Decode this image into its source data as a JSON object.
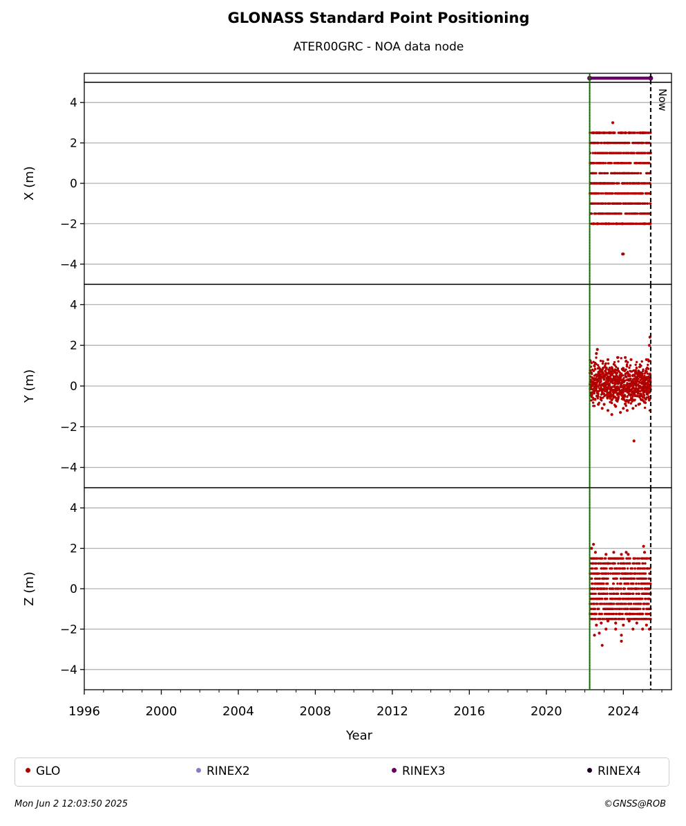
{
  "title": "GLONASS Standard Point Positioning",
  "subtitle": "ATER00GRC - NOA data node",
  "legend": [
    {
      "label": "GLO",
      "color": "#b00000"
    },
    {
      "label": "RINEX2",
      "color": "#8080c0"
    },
    {
      "label": "RINEX3",
      "color": "#660066"
    },
    {
      "label": "RINEX4",
      "color": "#1a0020"
    }
  ],
  "footer": {
    "timestamp": "Mon Jun  2 12:03:50 2025",
    "copyright": "©GNSS@ROB"
  },
  "chart_data": {
    "type": "scatter",
    "xlabel": "Year",
    "xlim": [
      1996,
      2026.5
    ],
    "xticks": [
      1996,
      2000,
      2004,
      2008,
      2012,
      2016,
      2020,
      2024
    ],
    "ylim": [
      -5,
      5
    ],
    "yticks": [
      4,
      2,
      0,
      -2,
      -4
    ],
    "ytick_labels": [
      "4",
      "2",
      "0",
      "−2",
      "−4"
    ],
    "grid": true,
    "data_start": 2022.25,
    "now": 2025.42,
    "now_label": "Now",
    "rinex3_span": [
      2022.25,
      2025.42
    ],
    "panels": [
      {
        "ylabel": "X (m)",
        "series_name": "GLO",
        "levels": [
          -2,
          -1.5,
          -1,
          -0.5,
          0,
          0.5,
          1,
          1.5,
          2,
          2.5
        ],
        "points": [
          [
            2022.3,
            1.0
          ],
          [
            2022.45,
            2.5
          ],
          [
            2022.6,
            2.5
          ],
          [
            2022.75,
            2.5
          ],
          [
            2023.0,
            2.5
          ],
          [
            2023.3,
            2.5
          ],
          [
            2023.5,
            2.5
          ],
          [
            2023.9,
            2.5
          ],
          [
            2024.1,
            2.5
          ],
          [
            2024.3,
            2.5
          ],
          [
            2024.9,
            2.5
          ],
          [
            2025.0,
            2.5
          ],
          [
            2023.45,
            3.0
          ],
          [
            2022.45,
            -2.0
          ],
          [
            2022.65,
            -2.0
          ],
          [
            2023.1,
            -2.0
          ],
          [
            2023.25,
            -2.0
          ],
          [
            2023.65,
            -2.0
          ],
          [
            2023.95,
            -2.0
          ],
          [
            2025.1,
            -2.0
          ],
          [
            2025.4,
            -2.0
          ],
          [
            2023.96,
            -3.5
          ],
          [
            2024.0,
            -3.5
          ]
        ]
      },
      {
        "ylabel": "Y (m)",
        "series_name": "GLO",
        "points": [
          [
            2022.6,
            1.6
          ],
          [
            2022.65,
            1.8
          ],
          [
            2023.2,
            1.3
          ],
          [
            2023.7,
            1.4
          ],
          [
            2024.1,
            1.4
          ],
          [
            2024.4,
            1.3
          ],
          [
            2025.2,
            1.3
          ],
          [
            2025.35,
            2.0
          ],
          [
            2025.38,
            2.4
          ],
          [
            2022.7,
            -0.9
          ],
          [
            2022.9,
            -1.1
          ],
          [
            2023.0,
            -0.9
          ],
          [
            2023.2,
            -1.2
          ],
          [
            2023.4,
            -1.4
          ],
          [
            2023.6,
            -1.0
          ],
          [
            2023.85,
            -1.3
          ],
          [
            2024.0,
            -1.1
          ],
          [
            2024.2,
            -1.2
          ],
          [
            2024.5,
            -1.1
          ],
          [
            2024.8,
            -0.9
          ],
          [
            2025.1,
            -0.8
          ],
          [
            2024.55,
            -2.7
          ]
        ]
      },
      {
        "ylabel": "Z (m)",
        "series_name": "GLO",
        "levels": [
          -1.5,
          -1.25,
          -1,
          -0.75,
          -0.5,
          -0.25,
          0,
          0.25,
          0.5,
          0.75,
          1,
          1.25,
          1.5
        ],
        "points": [
          [
            2022.35,
            2.0
          ],
          [
            2022.45,
            2.2
          ],
          [
            2022.55,
            1.8
          ],
          [
            2023.1,
            1.7
          ],
          [
            2023.5,
            1.8
          ],
          [
            2023.9,
            1.7
          ],
          [
            2024.15,
            1.8
          ],
          [
            2024.25,
            1.7
          ],
          [
            2025.05,
            2.1
          ],
          [
            2025.1,
            1.8
          ],
          [
            2022.6,
            -1.8
          ],
          [
            2022.85,
            -1.7
          ],
          [
            2023.2,
            -1.6
          ],
          [
            2023.6,
            -1.7
          ],
          [
            2024.0,
            -1.8
          ],
          [
            2024.3,
            -1.6
          ],
          [
            2024.7,
            -1.7
          ],
          [
            2025.2,
            -1.8
          ],
          [
            2022.5,
            -2.3
          ],
          [
            2022.75,
            -2.2
          ],
          [
            2023.1,
            -2.0
          ],
          [
            2023.6,
            -2.0
          ],
          [
            2023.9,
            -2.3
          ],
          [
            2024.5,
            -2.0
          ],
          [
            2025.0,
            -2.0
          ],
          [
            2025.35,
            -2.0
          ],
          [
            2022.9,
            -2.8
          ],
          [
            2023.9,
            -2.6
          ]
        ]
      }
    ]
  }
}
